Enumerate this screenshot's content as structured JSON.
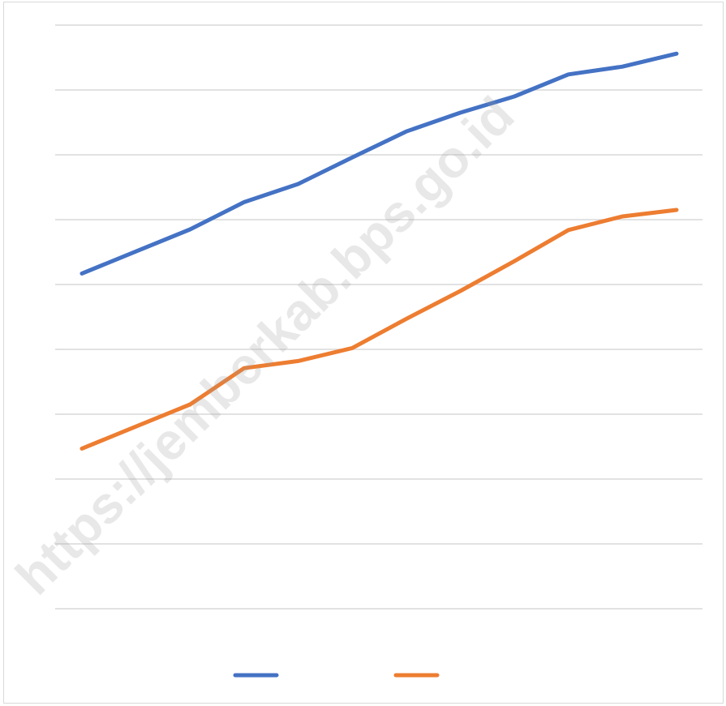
{
  "watermark": "https://jemberkab.bps.go.id",
  "chart_data": {
    "type": "line",
    "title": "",
    "xlabel": "",
    "ylabel": "",
    "ylim": [
      0,
      9
    ],
    "gridlines": 10,
    "grid": true,
    "legend": "bottom",
    "x": [
      1,
      2,
      3,
      4,
      5,
      6,
      7,
      8,
      9,
      10,
      11,
      12
    ],
    "series": [
      {
        "color": "#4472C4",
        "values": [
          5.17,
          5.51,
          5.85,
          6.27,
          6.55,
          6.96,
          7.36,
          7.65,
          7.9,
          8.24,
          8.36,
          8.56
        ]
      },
      {
        "color": "#ED7D31",
        "values": [
          2.47,
          2.81,
          3.15,
          3.71,
          3.82,
          4.02,
          4.47,
          4.9,
          5.36,
          5.84,
          6.05,
          6.15
        ]
      }
    ]
  }
}
